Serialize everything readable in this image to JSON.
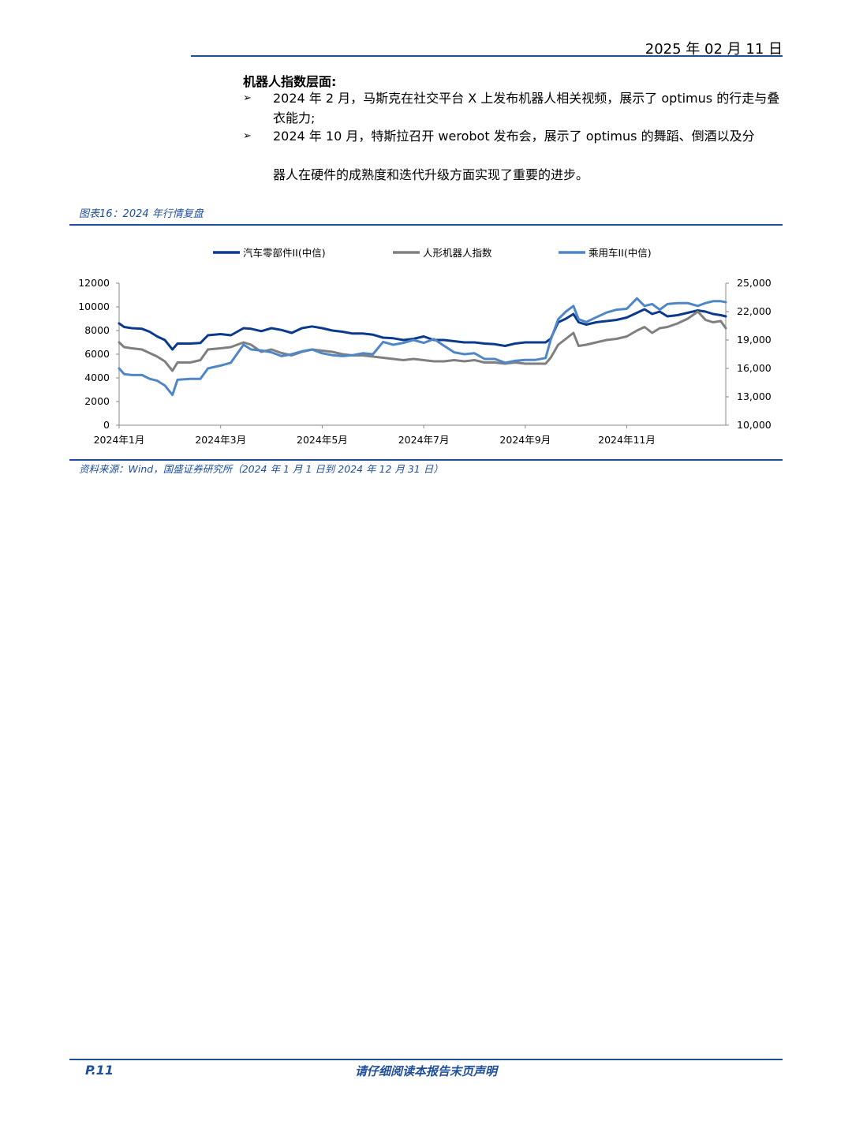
{
  "header": {
    "date": "2025 年 02 月 11 日"
  },
  "body": {
    "section_title": "机器人指数层面:",
    "bullet_mark": "➢",
    "bullets": [
      "2024 年 2 月，马斯克在社交平台 X 上发布机器人相关视频，展示了 optimus 的行走与叠衣能力;",
      "2024 年 10 月，特斯拉召开 werobot 发布会，展示了 optimus 的舞蹈、倒酒以及分"
    ],
    "tail_line": "器人在硬件的成熟度和迭代升级方面实现了重要的进步。"
  },
  "figure": {
    "title": "图表16：2024 年行情复盘",
    "source": "资料来源：Wind，国盛证券研究所（2024 年 1 月 1 日到 2024 年 12 月 31 日）"
  },
  "footer": {
    "page": "P.11",
    "note": "请仔细阅读本报告末页声明"
  },
  "colors": {
    "navy": "#0b3a8c",
    "gray": "#7f7f7f",
    "light_blue": "#4f86c6",
    "accent": "#1f4e9a"
  },
  "chart_data": {
    "type": "line",
    "x_ticks": [
      "2024年1月",
      "2024年3月",
      "2024年5月",
      "2024年7月",
      "2024年9月",
      "2024年11月"
    ],
    "x_tick_months": [
      1,
      3,
      5,
      7,
      9,
      11
    ],
    "x_range_months": [
      1,
      12.95
    ],
    "ylim_left": [
      0,
      12000
    ],
    "yticks_left": [
      "0",
      "2000",
      "4000",
      "6000",
      "8000",
      "10000",
      "12000"
    ],
    "ylim_right": [
      10000,
      25000
    ],
    "yticks_right": [
      "10,000",
      "13,000",
      "16,000",
      "19,000",
      "22,000",
      "25,000"
    ],
    "legend_position": "top",
    "series": [
      {
        "name": "汽车零部件II(中信)",
        "axis": "left",
        "color": "#0b3a8c",
        "points": [
          [
            1.0,
            8600
          ],
          [
            1.1,
            8300
          ],
          [
            1.25,
            8200
          ],
          [
            1.45,
            8150
          ],
          [
            1.6,
            7900
          ],
          [
            1.75,
            7500
          ],
          [
            1.9,
            7200
          ],
          [
            2.05,
            6400
          ],
          [
            2.15,
            6900
          ],
          [
            2.4,
            6900
          ],
          [
            2.6,
            6950
          ],
          [
            2.75,
            7600
          ],
          [
            3.0,
            7700
          ],
          [
            3.2,
            7600
          ],
          [
            3.45,
            8200
          ],
          [
            3.6,
            8150
          ],
          [
            3.8,
            7950
          ],
          [
            4.0,
            8200
          ],
          [
            4.2,
            8050
          ],
          [
            4.4,
            7800
          ],
          [
            4.6,
            8200
          ],
          [
            4.8,
            8350
          ],
          [
            5.0,
            8200
          ],
          [
            5.2,
            8000
          ],
          [
            5.4,
            7900
          ],
          [
            5.6,
            7750
          ],
          [
            5.8,
            7750
          ],
          [
            6.0,
            7650
          ],
          [
            6.2,
            7400
          ],
          [
            6.4,
            7350
          ],
          [
            6.6,
            7200
          ],
          [
            6.8,
            7300
          ],
          [
            7.0,
            7500
          ],
          [
            7.2,
            7200
          ],
          [
            7.4,
            7200
          ],
          [
            7.6,
            7100
          ],
          [
            7.8,
            7000
          ],
          [
            8.0,
            7000
          ],
          [
            8.2,
            6900
          ],
          [
            8.4,
            6850
          ],
          [
            8.6,
            6700
          ],
          [
            8.8,
            6900
          ],
          [
            9.0,
            7000
          ],
          [
            9.2,
            7000
          ],
          [
            9.4,
            7000
          ],
          [
            9.5,
            7300
          ],
          [
            9.65,
            8700
          ],
          [
            9.8,
            9000
          ],
          [
            9.95,
            9400
          ],
          [
            10.05,
            8700
          ],
          [
            10.2,
            8500
          ],
          [
            10.4,
            8700
          ],
          [
            10.6,
            8800
          ],
          [
            10.8,
            8900
          ],
          [
            11.0,
            9100
          ],
          [
            11.2,
            9500
          ],
          [
            11.35,
            9800
          ],
          [
            11.5,
            9400
          ],
          [
            11.65,
            9600
          ],
          [
            11.8,
            9200
          ],
          [
            12.0,
            9300
          ],
          [
            12.2,
            9500
          ],
          [
            12.4,
            9700
          ],
          [
            12.55,
            9600
          ],
          [
            12.7,
            9400
          ],
          [
            12.85,
            9300
          ],
          [
            12.95,
            9200
          ]
        ]
      },
      {
        "name": "人形机器人指数",
        "axis": "left",
        "color": "#7f7f7f",
        "points": [
          [
            1.0,
            7000
          ],
          [
            1.1,
            6600
          ],
          [
            1.25,
            6500
          ],
          [
            1.45,
            6400
          ],
          [
            1.6,
            6100
          ],
          [
            1.75,
            5800
          ],
          [
            1.9,
            5400
          ],
          [
            2.05,
            4600
          ],
          [
            2.15,
            5300
          ],
          [
            2.4,
            5300
          ],
          [
            2.6,
            5500
          ],
          [
            2.75,
            6400
          ],
          [
            3.0,
            6500
          ],
          [
            3.2,
            6600
          ],
          [
            3.45,
            7000
          ],
          [
            3.6,
            6800
          ],
          [
            3.8,
            6200
          ],
          [
            4.0,
            6400
          ],
          [
            4.2,
            6100
          ],
          [
            4.4,
            5900
          ],
          [
            4.6,
            6200
          ],
          [
            4.8,
            6400
          ],
          [
            5.0,
            6300
          ],
          [
            5.2,
            6200
          ],
          [
            5.4,
            6000
          ],
          [
            5.6,
            5900
          ],
          [
            5.8,
            5900
          ],
          [
            6.0,
            5800
          ],
          [
            6.2,
            5700
          ],
          [
            6.4,
            5600
          ],
          [
            6.6,
            5500
          ],
          [
            6.8,
            5600
          ],
          [
            7.0,
            5500
          ],
          [
            7.2,
            5400
          ],
          [
            7.4,
            5400
          ],
          [
            7.6,
            5500
          ],
          [
            7.8,
            5400
          ],
          [
            8.0,
            5500
          ],
          [
            8.2,
            5300
          ],
          [
            8.4,
            5300
          ],
          [
            8.6,
            5200
          ],
          [
            8.8,
            5300
          ],
          [
            9.0,
            5200
          ],
          [
            9.2,
            5200
          ],
          [
            9.4,
            5200
          ],
          [
            9.5,
            5700
          ],
          [
            9.65,
            6800
          ],
          [
            9.8,
            7300
          ],
          [
            9.95,
            7800
          ],
          [
            10.05,
            6700
          ],
          [
            10.2,
            6800
          ],
          [
            10.4,
            7000
          ],
          [
            10.6,
            7200
          ],
          [
            10.8,
            7300
          ],
          [
            11.0,
            7500
          ],
          [
            11.2,
            8000
          ],
          [
            11.35,
            8300
          ],
          [
            11.5,
            7800
          ],
          [
            11.65,
            8200
          ],
          [
            11.8,
            8300
          ],
          [
            12.0,
            8600
          ],
          [
            12.2,
            9000
          ],
          [
            12.4,
            9600
          ],
          [
            12.55,
            8900
          ],
          [
            12.7,
            8700
          ],
          [
            12.85,
            8800
          ],
          [
            12.95,
            8200
          ]
        ]
      },
      {
        "name": "乘用车II(中信)",
        "axis": "right",
        "color": "#4f86c6",
        "points": [
          [
            1.0,
            16000
          ],
          [
            1.1,
            15400
          ],
          [
            1.25,
            15300
          ],
          [
            1.45,
            15300
          ],
          [
            1.6,
            14900
          ],
          [
            1.75,
            14700
          ],
          [
            1.9,
            14200
          ],
          [
            2.05,
            13200
          ],
          [
            2.15,
            14800
          ],
          [
            2.4,
            14900
          ],
          [
            2.6,
            14900
          ],
          [
            2.75,
            16000
          ],
          [
            3.0,
            16300
          ],
          [
            3.2,
            16600
          ],
          [
            3.45,
            18500
          ],
          [
            3.6,
            18000
          ],
          [
            3.8,
            17900
          ],
          [
            4.0,
            17700
          ],
          [
            4.2,
            17300
          ],
          [
            4.4,
            17500
          ],
          [
            4.6,
            17800
          ],
          [
            4.8,
            18000
          ],
          [
            5.0,
            17600
          ],
          [
            5.2,
            17400
          ],
          [
            5.4,
            17300
          ],
          [
            5.6,
            17400
          ],
          [
            5.8,
            17600
          ],
          [
            6.0,
            17500
          ],
          [
            6.2,
            18800
          ],
          [
            6.4,
            18500
          ],
          [
            6.6,
            18700
          ],
          [
            6.8,
            19000
          ],
          [
            7.0,
            18700
          ],
          [
            7.2,
            19100
          ],
          [
            7.4,
            18400
          ],
          [
            7.6,
            17700
          ],
          [
            7.8,
            17500
          ],
          [
            8.0,
            17600
          ],
          [
            8.2,
            17000
          ],
          [
            8.4,
            17000
          ],
          [
            8.6,
            16600
          ],
          [
            8.8,
            16800
          ],
          [
            9.0,
            16900
          ],
          [
            9.2,
            16900
          ],
          [
            9.4,
            17100
          ],
          [
            9.5,
            19000
          ],
          [
            9.65,
            21200
          ],
          [
            9.8,
            22000
          ],
          [
            9.95,
            22600
          ],
          [
            10.05,
            21200
          ],
          [
            10.2,
            20900
          ],
          [
            10.4,
            21400
          ],
          [
            10.6,
            21900
          ],
          [
            10.8,
            22200
          ],
          [
            11.0,
            22300
          ],
          [
            11.2,
            23400
          ],
          [
            11.35,
            22600
          ],
          [
            11.5,
            22800
          ],
          [
            11.65,
            22200
          ],
          [
            11.8,
            22800
          ],
          [
            12.0,
            22900
          ],
          [
            12.2,
            22900
          ],
          [
            12.4,
            22600
          ],
          [
            12.55,
            22900
          ],
          [
            12.7,
            23100
          ],
          [
            12.85,
            23100
          ],
          [
            12.95,
            23000
          ]
        ]
      }
    ]
  }
}
